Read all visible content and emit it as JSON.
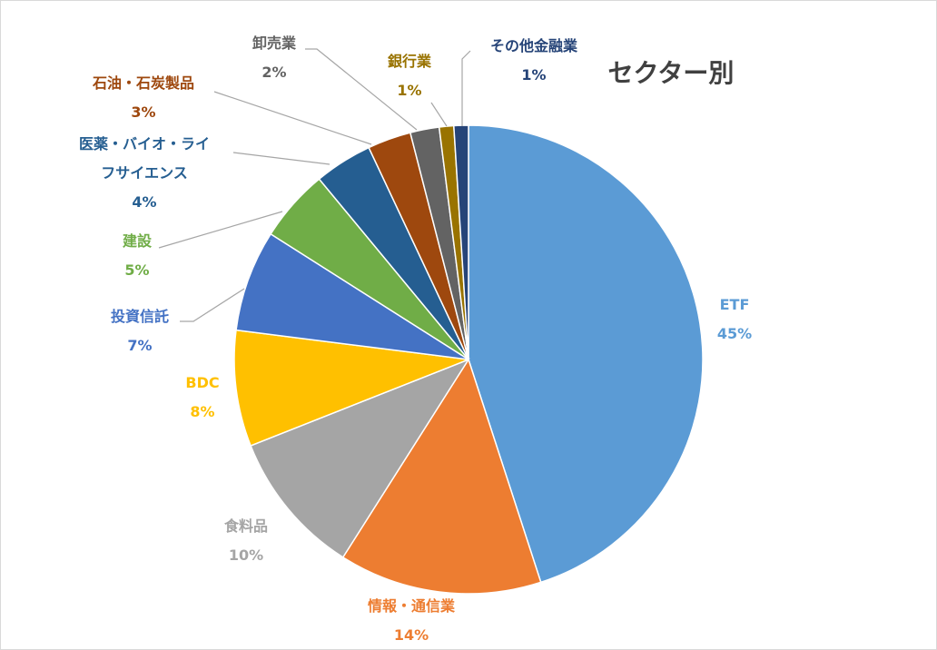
{
  "chart_data": {
    "type": "pie",
    "title": "セクター別",
    "slices": [
      {
        "name_lines": [
          "ETF"
        ],
        "value": 45,
        "value_label": "45%",
        "color": "#5b9bd5"
      },
      {
        "name_lines": [
          "情報・通信業"
        ],
        "value": 14,
        "value_label": "14%",
        "color": "#ed7d31"
      },
      {
        "name_lines": [
          "食料品"
        ],
        "value": 10,
        "value_label": "10%",
        "color": "#a5a5a5"
      },
      {
        "name_lines": [
          "BDC"
        ],
        "value": 8,
        "value_label": "8%",
        "color": "#ffc000"
      },
      {
        "name_lines": [
          "投資信託"
        ],
        "value": 7,
        "value_label": "7%",
        "color": "#4472c4"
      },
      {
        "name_lines": [
          "建設"
        ],
        "value": 5,
        "value_label": "5%",
        "color": "#70ad47"
      },
      {
        "name_lines": [
          "医薬・バイオ・ライ",
          "フサイエンス"
        ],
        "value": 4,
        "value_label": "4%",
        "color": "#255e91"
      },
      {
        "name_lines": [
          "石油・石炭製品"
        ],
        "value": 3,
        "value_label": "3%",
        "color": "#9e480e"
      },
      {
        "name_lines": [
          "卸売業"
        ],
        "value": 2,
        "value_label": "2%",
        "color": "#636363"
      },
      {
        "name_lines": [
          "銀行業"
        ],
        "value": 1,
        "value_label": "1%",
        "color": "#997300"
      },
      {
        "name_lines": [
          "その他金融業"
        ],
        "value": 1,
        "value_label": "1%",
        "color": "#264478"
      }
    ],
    "label_colors": {
      "ETF": "#5b9bd5",
      "情報・通信業": "#ed7d31",
      "食料品": "#a5a5a5",
      "BDC": "#ffc000",
      "投資信託": "#4472c4",
      "建設": "#70ad47",
      "医薬・バイオ・ライフサイエンス": "#255e91",
      "石油・石炭製品": "#9e480e",
      "卸売業": "#636363",
      "銀行業": "#997300",
      "その他金融業": "#264478"
    },
    "legend": "none"
  }
}
